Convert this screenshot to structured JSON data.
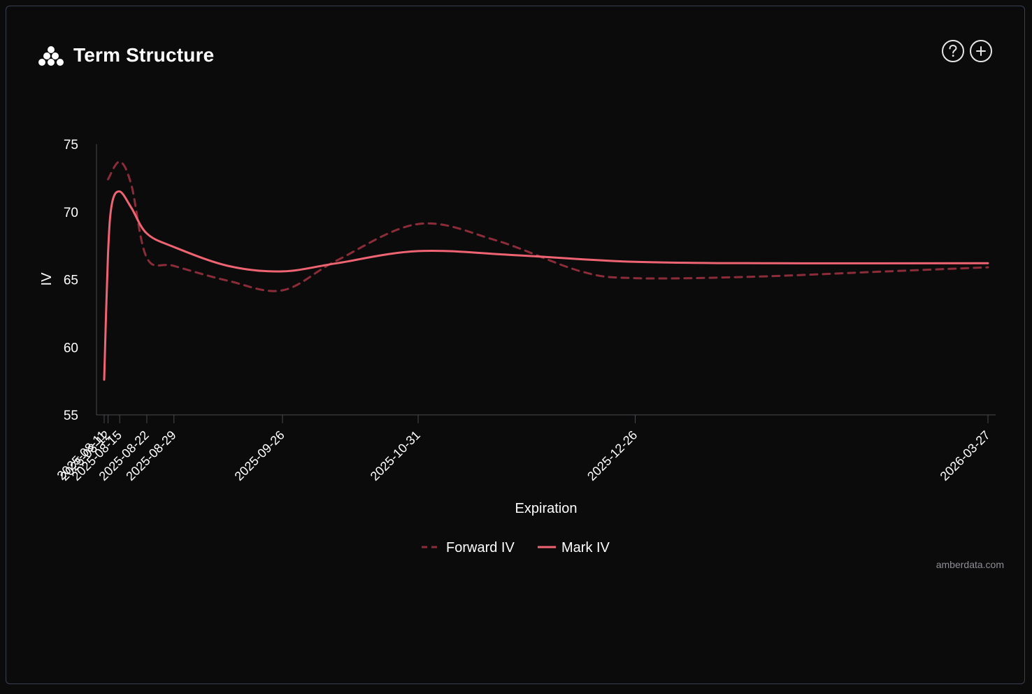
{
  "header": {
    "title": "Term Structure",
    "logo_icon": "amberdata-logo-icon",
    "help_icon": "question-circle-icon",
    "add_icon": "plus-circle-icon"
  },
  "watermark": "amberdata.com",
  "colors": {
    "background": "#0b0b0c",
    "mark_iv": "#ef6473",
    "forward_iv": "#8b2c38",
    "axis": "#4a4a4e",
    "text": "#ffffff"
  },
  "chart_data": {
    "type": "line",
    "title": "",
    "xlabel": "Expiration",
    "ylabel": "IV",
    "ylim": [
      55,
      75
    ],
    "yticks": [
      55,
      60,
      65,
      70,
      75
    ],
    "x_scale": "time",
    "x_domain": [
      "2025-08-11",
      "2026-03-27"
    ],
    "x_ticks": [
      "2025-08-11",
      "2025-08-12",
      "2025-08-15",
      "2025-08-22",
      "2025-08-29",
      "2025-09-26",
      "2025-10-31",
      "2025-12-26",
      "2026-03-27"
    ],
    "grid": false,
    "legend_position": "bottom-center",
    "series": [
      {
        "name": "Forward IV",
        "style": "dashed",
        "color": "#8b2c38",
        "points": [
          [
            "2025-08-12",
            72.4
          ],
          [
            "2025-08-15",
            73.7
          ],
          [
            "2025-08-18",
            72.0
          ],
          [
            "2025-08-22",
            66.6
          ],
          [
            "2025-08-29",
            66.0
          ],
          [
            "2025-09-12",
            64.9
          ],
          [
            "2025-09-26",
            64.2
          ],
          [
            "2025-10-10",
            66.4
          ],
          [
            "2025-10-31",
            69.1
          ],
          [
            "2025-11-20",
            67.9
          ],
          [
            "2025-12-12",
            65.6
          ],
          [
            "2025-12-26",
            65.1
          ],
          [
            "2026-01-25",
            65.2
          ],
          [
            "2026-03-01",
            65.6
          ],
          [
            "2026-03-27",
            65.9
          ]
        ]
      },
      {
        "name": "Mark IV",
        "style": "solid",
        "color": "#ef6473",
        "points": [
          [
            "2025-08-11",
            57.6
          ],
          [
            "2025-08-12",
            66.9
          ],
          [
            "2025-08-13",
            70.6
          ],
          [
            "2025-08-15",
            71.5
          ],
          [
            "2025-08-18",
            70.3
          ],
          [
            "2025-08-22",
            68.4
          ],
          [
            "2025-08-29",
            67.4
          ],
          [
            "2025-09-12",
            66.0
          ],
          [
            "2025-09-26",
            65.6
          ],
          [
            "2025-10-10",
            66.2
          ],
          [
            "2025-10-31",
            67.1
          ],
          [
            "2025-11-25",
            66.8
          ],
          [
            "2025-12-26",
            66.3
          ],
          [
            "2026-02-01",
            66.2
          ],
          [
            "2026-03-27",
            66.2
          ]
        ]
      }
    ]
  }
}
